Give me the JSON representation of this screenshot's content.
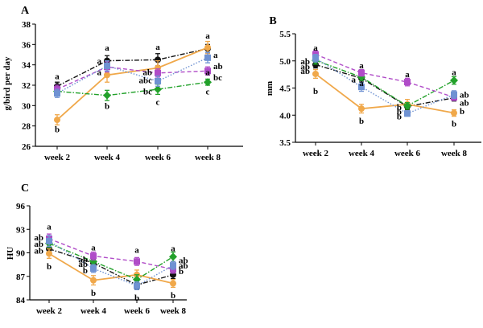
{
  "chart_data": [
    {
      "panel": "A",
      "type": "line",
      "title": "",
      "xlabel": "",
      "ylabel": "g/bird per day",
      "categories": [
        "week 2",
        "week 4",
        "week 6",
        "week 8"
      ],
      "ylim": [
        26,
        38
      ],
      "yticks": [
        26,
        28,
        30,
        32,
        34,
        36,
        38
      ],
      "series": [
        {
          "name": "black",
          "color": "#111111",
          "style": "dashdot",
          "marker": "circle",
          "values": [
            31.9,
            34.4,
            34.5,
            35.6
          ],
          "errors": [
            0.4,
            0.5,
            0.6,
            0.4
          ]
        },
        {
          "name": "orange",
          "color": "#f0a84a",
          "style": "solid",
          "marker": "circle",
          "values": [
            28.6,
            33.0,
            33.7,
            35.7
          ],
          "errors": [
            0.5,
            0.7,
            0.7,
            0.6
          ]
        },
        {
          "name": "green",
          "color": "#22a12a",
          "style": "dashdot",
          "marker": "diamond",
          "values": [
            31.4,
            31.0,
            31.6,
            32.3
          ],
          "errors": [
            0.4,
            0.5,
            0.5,
            0.3
          ]
        },
        {
          "name": "purple",
          "color": "#b04cc8",
          "style": "dashed",
          "marker": "square",
          "values": [
            31.6,
            33.8,
            33.2,
            33.4
          ],
          "errors": [
            0.4,
            0.5,
            0.4,
            0.4
          ]
        },
        {
          "name": "blue",
          "color": "#6f92d2",
          "style": "dotted",
          "marker": "square",
          "values": [
            31.2,
            33.9,
            32.4,
            34.7
          ],
          "errors": [
            0.4,
            0.5,
            0.5,
            0.5
          ]
        }
      ],
      "annotations": [
        {
          "text": "a",
          "cat": 0,
          "y": 32.9,
          "side": "above"
        },
        {
          "text": "b",
          "cat": 0,
          "y": 27.7,
          "side": "below"
        },
        {
          "text": "a",
          "cat": 1,
          "y": 35.7,
          "side": "above"
        },
        {
          "text": "a",
          "cat": 1,
          "y": 34.4,
          "side": "left"
        },
        {
          "text": "a",
          "cat": 1,
          "y": 33.3,
          "side": "left"
        },
        {
          "text": "b",
          "cat": 1,
          "y": 30.0,
          "side": "below"
        },
        {
          "text": "a",
          "cat": 2,
          "y": 35.8,
          "side": "above"
        },
        {
          "text": "ab",
          "cat": 2,
          "y": 33.3,
          "side": "left"
        },
        {
          "text": "abc",
          "cat": 2,
          "y": 32.5,
          "side": "left"
        },
        {
          "text": "bc",
          "cat": 2,
          "y": 31.4,
          "side": "left"
        },
        {
          "text": "c",
          "cat": 2,
          "y": 30.4,
          "side": "below"
        },
        {
          "text": "a",
          "cat": 3,
          "y": 36.9,
          "side": "above"
        },
        {
          "text": "a",
          "cat": 3,
          "y": 35.0,
          "side": "right"
        },
        {
          "text": "ab",
          "cat": 3,
          "y": 33.9,
          "side": "right"
        },
        {
          "text": "bc",
          "cat": 3,
          "y": 32.8,
          "side": "right"
        },
        {
          "text": "a",
          "cat": 3,
          "y": 33.3,
          "side": "above"
        },
        {
          "text": "c",
          "cat": 3,
          "y": 31.4,
          "side": "below"
        }
      ]
    },
    {
      "panel": "B",
      "type": "line",
      "title": "",
      "xlabel": "",
      "ylabel": "mm",
      "categories": [
        "week 2",
        "week 4",
        "week 6",
        "week 8"
      ],
      "ylim": [
        3.5,
        5.5
      ],
      "yticks": [
        3.5,
        4.0,
        4.5,
        5.0,
        5.5
      ],
      "ytick_labels": [
        "3.5",
        "4.0",
        "4.5",
        "5.0",
        "5.5"
      ],
      "series": [
        {
          "name": "black",
          "color": "#111111",
          "style": "dashdot",
          "marker": "circle",
          "values": [
            4.93,
            4.68,
            4.16,
            4.32
          ],
          "errors": [
            0.06,
            0.07,
            0.06,
            0.06
          ]
        },
        {
          "name": "orange",
          "color": "#f0a84a",
          "style": "solid",
          "marker": "circle",
          "values": [
            4.76,
            4.12,
            4.2,
            4.04
          ],
          "errors": [
            0.08,
            0.08,
            0.09,
            0.06
          ]
        },
        {
          "name": "green",
          "color": "#22a12a",
          "style": "dashdot",
          "marker": "diamond",
          "values": [
            5.01,
            4.7,
            4.17,
            4.64
          ],
          "errors": [
            0.07,
            0.06,
            0.06,
            0.07
          ]
        },
        {
          "name": "purple",
          "color": "#b04cc8",
          "style": "dashed",
          "marker": "square",
          "values": [
            5.12,
            4.78,
            4.61,
            4.33
          ],
          "errors": [
            0.07,
            0.06,
            0.07,
            0.06
          ]
        },
        {
          "name": "blue",
          "color": "#6f92d2",
          "style": "dotted",
          "marker": "square",
          "values": [
            5.05,
            4.52,
            4.03,
            4.38
          ],
          "errors": [
            0.07,
            0.08,
            0.05,
            0.07
          ]
        }
      ],
      "annotations": [
        {
          "text": "a",
          "cat": 0,
          "y": 5.25,
          "side": "above"
        },
        {
          "text": "ab",
          "cat": 0,
          "y": 5.0,
          "side": "left"
        },
        {
          "text": "ab",
          "cat": 0,
          "y": 4.9,
          "side": "left"
        },
        {
          "text": "ab",
          "cat": 0,
          "y": 4.82,
          "side": "left"
        },
        {
          "text": "b",
          "cat": 0,
          "y": 4.45,
          "side": "below"
        },
        {
          "text": "a",
          "cat": 1,
          "y": 4.92,
          "side": "above"
        },
        {
          "text": "a",
          "cat": 1,
          "y": 4.66,
          "side": "left"
        },
        {
          "text": "a",
          "cat": 1,
          "y": 4.6,
          "side": "above"
        },
        {
          "text": "b",
          "cat": 1,
          "y": 3.9,
          "side": "below"
        },
        {
          "text": "a",
          "cat": 2,
          "y": 4.76,
          "side": "above"
        },
        {
          "text": "b",
          "cat": 2,
          "y": 4.15,
          "side": "left"
        },
        {
          "text": "b",
          "cat": 2,
          "y": 4.07,
          "side": "left"
        },
        {
          "text": "b",
          "cat": 2,
          "y": 3.98,
          "side": "left"
        },
        {
          "text": "a",
          "cat": 3,
          "y": 4.8,
          "side": "above"
        },
        {
          "text": "ab",
          "cat": 3,
          "y": 4.38,
          "side": "right"
        },
        {
          "text": "ab",
          "cat": 3,
          "y": 4.23,
          "side": "right"
        },
        {
          "text": "b",
          "cat": 3,
          "y": 4.08,
          "side": "right"
        },
        {
          "text": "b",
          "cat": 3,
          "y": 3.85,
          "side": "below"
        }
      ]
    },
    {
      "panel": "C",
      "type": "line",
      "title": "",
      "xlabel": "",
      "ylabel": "HU",
      "categories": [
        "week 2",
        "week 4",
        "week 6",
        "week 8"
      ],
      "ylim": [
        84,
        96
      ],
      "yticks": [
        84,
        87,
        90,
        93,
        96
      ],
      "series": [
        {
          "name": "black",
          "color": "#111111",
          "style": "dashdot",
          "marker": "circle",
          "values": [
            90.5,
            88.7,
            85.9,
            87.2
          ],
          "errors": [
            0.5,
            0.5,
            0.5,
            0.5
          ]
        },
        {
          "name": "orange",
          "color": "#f0a84a",
          "style": "solid",
          "marker": "circle",
          "values": [
            89.9,
            86.5,
            87.2,
            86.1
          ],
          "errors": [
            0.6,
            0.6,
            0.6,
            0.5
          ]
        },
        {
          "name": "green",
          "color": "#22a12a",
          "style": "dashdot",
          "marker": "diamond",
          "values": [
            91.2,
            88.9,
            86.6,
            89.5
          ],
          "errors": [
            0.5,
            0.5,
            0.6,
            0.6
          ]
        },
        {
          "name": "purple",
          "color": "#b04cc8",
          "style": "dashed",
          "marker": "square",
          "values": [
            91.8,
            89.6,
            88.9,
            87.9
          ],
          "errors": [
            0.6,
            0.5,
            0.5,
            0.5
          ]
        },
        {
          "name": "blue",
          "color": "#6f92d2",
          "style": "dotted",
          "marker": "square",
          "values": [
            91.5,
            88.0,
            85.8,
            88.4
          ],
          "errors": [
            0.7,
            0.5,
            0.5,
            0.5
          ]
        }
      ],
      "annotations": [
        {
          "text": "a",
          "cat": 0,
          "y": 93.4,
          "side": "above"
        },
        {
          "text": "ab",
          "cat": 0,
          "y": 92.0,
          "side": "left"
        },
        {
          "text": "ab",
          "cat": 0,
          "y": 91.2,
          "side": "left"
        },
        {
          "text": "ab",
          "cat": 0,
          "y": 90.3,
          "side": "left"
        },
        {
          "text": "b",
          "cat": 0,
          "y": 88.3,
          "side": "below"
        },
        {
          "text": "a",
          "cat": 1,
          "y": 90.7,
          "side": "above"
        },
        {
          "text": "ab",
          "cat": 1,
          "y": 89.2,
          "side": "left"
        },
        {
          "text": "ab",
          "cat": 1,
          "y": 88.6,
          "side": "left"
        },
        {
          "text": "b",
          "cat": 1,
          "y": 87.8,
          "side": "left"
        },
        {
          "text": "b",
          "cat": 1,
          "y": 84.9,
          "side": "below"
        },
        {
          "text": "a",
          "cat": 2,
          "y": 90.4,
          "side": "above"
        },
        {
          "text": "b",
          "cat": 2,
          "y": 84.3,
          "side": "below"
        },
        {
          "text": "a",
          "cat": 3,
          "y": 90.6,
          "side": "above"
        },
        {
          "text": "ab",
          "cat": 3,
          "y": 89.1,
          "side": "right"
        },
        {
          "text": "ab",
          "cat": 3,
          "y": 88.4,
          "side": "right"
        },
        {
          "text": "b",
          "cat": 3,
          "y": 87.7,
          "side": "right"
        },
        {
          "text": "b",
          "cat": 3,
          "y": 84.6,
          "side": "below"
        }
      ]
    }
  ]
}
